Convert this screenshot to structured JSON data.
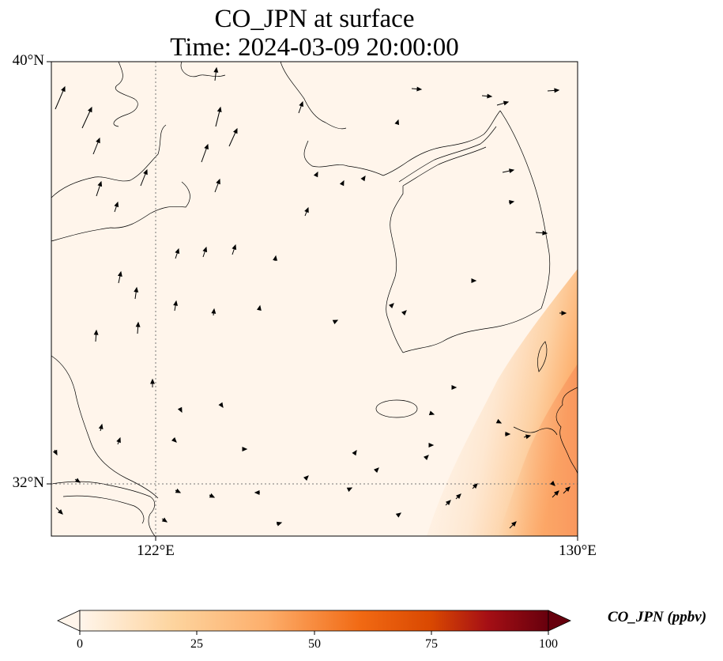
{
  "title": {
    "line1": "CO_JPN at surface",
    "line2": "Time: 2024-03-09 20:00:00"
  },
  "map": {
    "lat_ticks": [
      "40°N",
      "32°N"
    ],
    "lon_ticks": [
      "122°E",
      "130°E"
    ],
    "background_color": "#fff5eb",
    "coastline_color": "#000000",
    "gridline_style": "dotted",
    "features": [
      "coastlines",
      "wind-vectors",
      "CO concentration field"
    ]
  },
  "colorbar": {
    "label": "CO_JPN (ppbv)",
    "ticks": [
      "0",
      "25",
      "50",
      "75",
      "100"
    ],
    "colormap": "Oranges-to-dark-red",
    "colors": [
      "#fff5eb",
      "#fdd49e",
      "#fdae6b",
      "#f16913",
      "#d94801",
      "#a50f15",
      "#67000d"
    ],
    "extend": "both"
  }
}
